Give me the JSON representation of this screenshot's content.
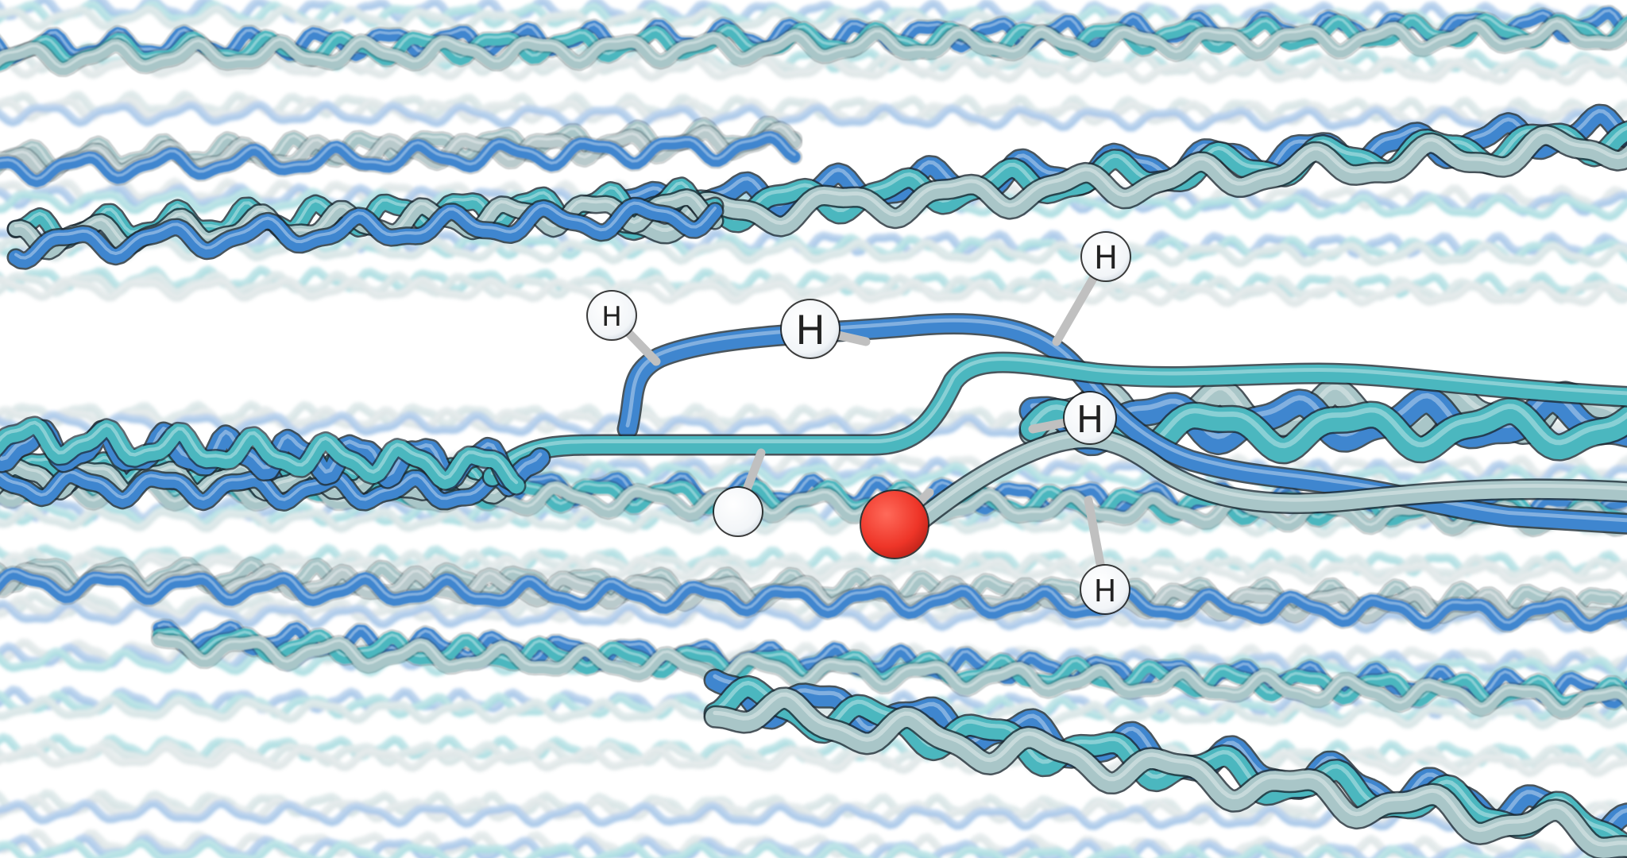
{
  "scene": {
    "background": "#ffffff",
    "palette": {
      "blue": "#3f86cf",
      "teal": "#4bb7bf",
      "pale": "#a9c6c8",
      "grey": "#b9cacc",
      "oxygen": "#e63a2e",
      "hydrogen": "#ffffff",
      "bond": "#c0c0c0"
    }
  },
  "atoms": [
    {
      "element": "H",
      "label": "H"
    },
    {
      "element": "H",
      "label": "H"
    },
    {
      "element": "H",
      "label": "H"
    },
    {
      "element": "H",
      "label": "H"
    },
    {
      "element": "H",
      "label": "H"
    },
    {
      "element": "H",
      "label": ""
    },
    {
      "element": "O",
      "label": ""
    }
  ]
}
